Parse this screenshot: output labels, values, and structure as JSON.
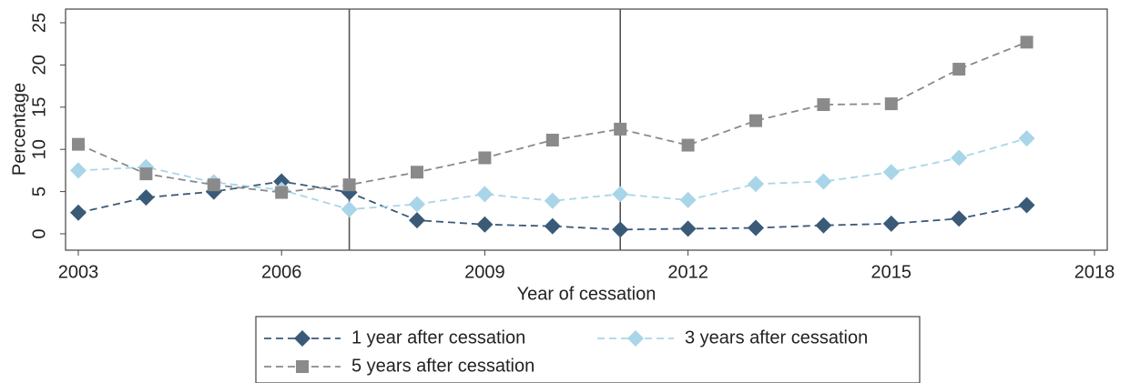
{
  "chart_data": {
    "type": "line",
    "x_label": "Year of cessation",
    "y_label": "Percentage",
    "x": [
      2003,
      2004,
      2005,
      2006,
      2007,
      2008,
      2009,
      2010,
      2011,
      2012,
      2013,
      2014,
      2015,
      2016,
      2017
    ],
    "series": [
      {
        "name": "1 year after cessation",
        "color": "#3a5a78",
        "marker": "diamond",
        "values": [
          2.5,
          4.3,
          5.0,
          6.2,
          4.9,
          1.6,
          1.1,
          0.9,
          0.5,
          0.6,
          0.7,
          1.0,
          1.2,
          1.8,
          3.4
        ]
      },
      {
        "name": "3 years after cessation",
        "color": "#a9d5e8",
        "marker": "diamond",
        "values": [
          7.5,
          7.9,
          6.1,
          5.2,
          2.9,
          3.5,
          4.7,
          3.9,
          4.7,
          4.0,
          5.9,
          6.2,
          7.3,
          9.0,
          11.3
        ]
      },
      {
        "name": "5 years after cessation",
        "color": "#8a8a8a",
        "marker": "square",
        "values": [
          10.6,
          7.1,
          5.8,
          4.9,
          5.8,
          7.3,
          9.0,
          11.1,
          12.4,
          10.5,
          13.4,
          15.3,
          15.4,
          19.5,
          22.7
        ]
      }
    ],
    "xlim": [
      2003,
      2018
    ],
    "xticks": [
      2003,
      2006,
      2009,
      2012,
      2015,
      2018
    ],
    "ylim": [
      0,
      25
    ],
    "yticks": [
      0,
      5,
      10,
      15,
      20,
      25
    ],
    "xlines": [
      2007,
      2011
    ],
    "grid": false
  }
}
